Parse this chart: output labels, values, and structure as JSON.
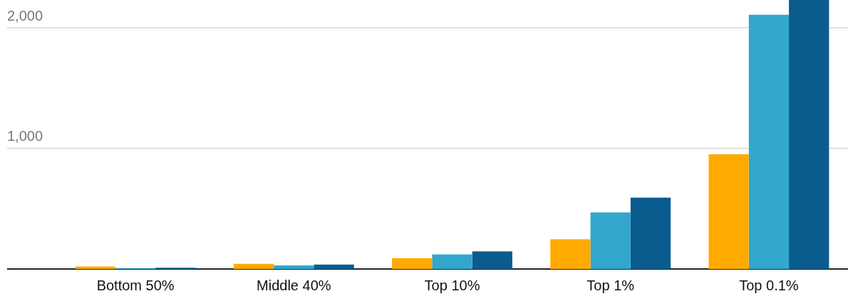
{
  "chart_data": {
    "type": "bar",
    "categories": [
      "Bottom 50%",
      "Middle 40%",
      "Top 10%",
      "Top 1%",
      "Top 0.1%"
    ],
    "series": [
      {
        "color": "#ffaa00",
        "values": [
          20,
          43,
          90,
          247,
          952
        ]
      },
      {
        "color": "#33a6cc",
        "values": [
          8,
          30,
          121,
          469,
          2108
        ]
      },
      {
        "color": "#0a5c8f",
        "values": [
          10,
          37,
          146,
          591,
          2230
        ]
      }
    ],
    "ylim": [
      0,
      2230
    ],
    "yticks": [
      {
        "value": 1000,
        "label": "1,000"
      },
      {
        "value": 2000,
        "label": "2,000"
      }
    ],
    "grid": "y",
    "legend": false
  }
}
